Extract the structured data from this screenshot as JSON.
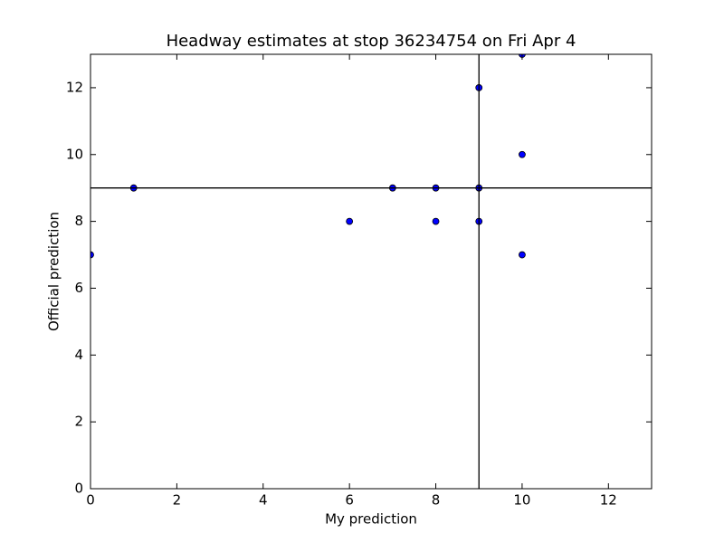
{
  "chart_data": {
    "type": "scatter",
    "title": "Headway estimates at stop 36234754 on Fri Apr 4",
    "x_label": "My prediction",
    "y_label": "Official prediction",
    "series": [
      {
        "color": "#0000ff",
        "x": [
          0,
          1,
          6,
          7,
          8,
          8,
          9,
          9,
          9,
          10,
          10,
          10
        ],
        "values": [
          7,
          9,
          8,
          9,
          9,
          8,
          12,
          9,
          8,
          13,
          10,
          7
        ]
      }
    ],
    "vlines": [
      9
    ],
    "hlines": [
      9
    ],
    "xlim": [
      0,
      13
    ],
    "ylim": [
      0,
      13
    ],
    "xticks": [
      0,
      2,
      4,
      6,
      8,
      10,
      12
    ],
    "yticks": [
      0,
      2,
      4,
      6,
      8,
      10,
      12
    ],
    "grid": false
  }
}
